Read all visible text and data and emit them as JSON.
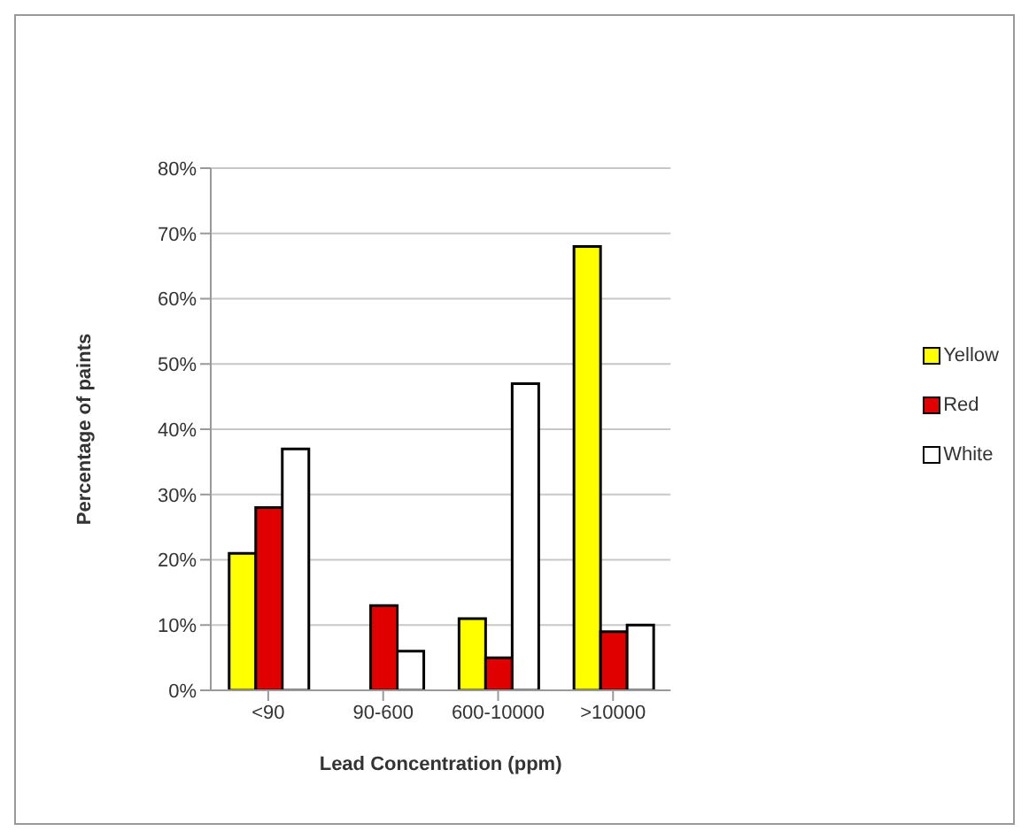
{
  "chart_data": {
    "type": "bar",
    "xlabel": "Lead Concentration (ppm)",
    "ylabel": "Percentage of paints",
    "categories": [
      "<90",
      "90-600",
      "600-10000",
      ">10000"
    ],
    "series": [
      {
        "name": "Yellow",
        "color": "#ffff00",
        "values": [
          21,
          0,
          11,
          68
        ]
      },
      {
        "name": "Red",
        "color": "#e00000",
        "values": [
          28,
          13,
          5,
          9
        ]
      },
      {
        "name": "White",
        "color": "#ffffff",
        "values": [
          37,
          6,
          47,
          10
        ]
      }
    ],
    "ylim": [
      0,
      80
    ],
    "yticks": [
      {
        "value": 0,
        "label": "0%"
      },
      {
        "value": 10,
        "label": "10%"
      },
      {
        "value": 20,
        "label": "20%"
      },
      {
        "value": 30,
        "label": "30%"
      },
      {
        "value": 40,
        "label": "40%"
      },
      {
        "value": 50,
        "label": "50%"
      },
      {
        "value": 60,
        "label": "60%"
      },
      {
        "value": 70,
        "label": "70%"
      },
      {
        "value": 80,
        "label": "80%"
      }
    ],
    "grid": "y",
    "legend": "right"
  }
}
